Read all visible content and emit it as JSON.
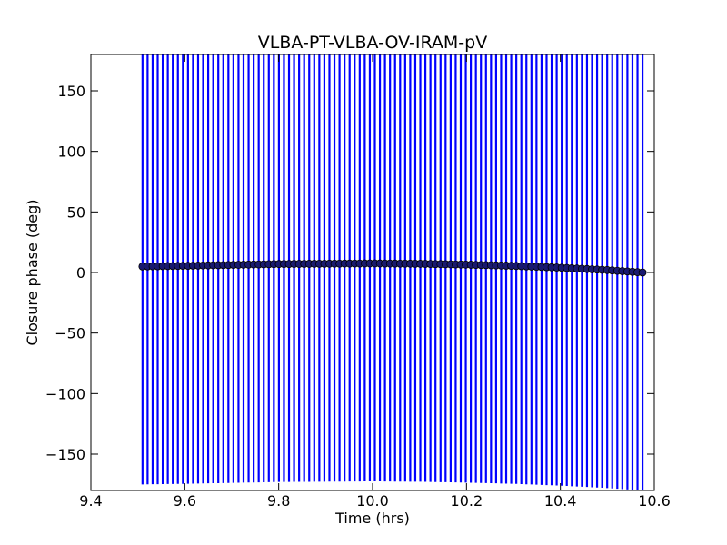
{
  "chart_data": {
    "type": "scatter",
    "title": "VLBA-PT-VLBA-OV-IRAM-pV",
    "xlabel": "Time (hrs)",
    "ylabel": "Closure phase (deg)",
    "xlim": [
      9.4,
      10.6
    ],
    "ylim": [
      -180,
      180
    ],
    "x_ticks": [
      9.4,
      9.6,
      9.8,
      10.0,
      10.2,
      10.4,
      10.6
    ],
    "x_tick_labels": [
      "9.4",
      "9.6",
      "9.8",
      "10.0",
      "10.2",
      "10.4",
      "10.6"
    ],
    "y_ticks": [
      -150,
      -100,
      -50,
      0,
      50,
      100,
      150
    ],
    "y_tick_labels": [
      "−150",
      "−100",
      "−50",
      "0",
      "50",
      "100",
      "150"
    ],
    "grid": false,
    "series": [
      {
        "x_start": 9.51,
        "x_end": 10.575,
        "n_points": 100,
        "y_anchor_x": [
          9.51,
          9.6,
          9.8,
          10.0,
          10.1,
          10.2,
          10.3,
          10.4,
          10.5,
          10.575
        ],
        "y_anchor_y": [
          5.0,
          5.5,
          7.0,
          7.5,
          7.2,
          6.5,
          5.5,
          4.0,
          2.0,
          0.0
        ],
        "error": 180,
        "marker_color": "#191970",
        "errorbar_color": "#0000ff"
      }
    ]
  }
}
